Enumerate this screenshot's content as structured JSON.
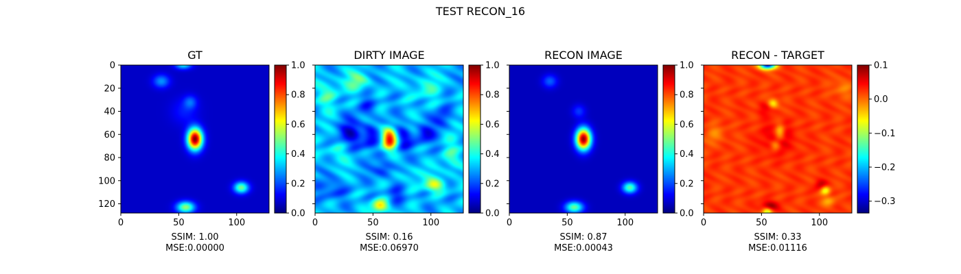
{
  "figure": {
    "title": "TEST RECON_16"
  },
  "chart_data": [
    {
      "type": "heatmap",
      "title": "GT",
      "colormap": "jet",
      "image_extent": [
        0,
        128
      ],
      "x_ticks": [
        "0",
        "50",
        "100"
      ],
      "y_ticks": [
        "0",
        "20",
        "40",
        "60",
        "80",
        "100",
        "120"
      ],
      "colorbar": {
        "range": [
          0.0,
          1.0
        ],
        "ticks": [
          "0.0",
          "0.2",
          "0.4",
          "0.6",
          "0.8",
          "1.0"
        ]
      },
      "metrics": {
        "ssim": "SSIM: 1.00",
        "mse": "MSE:0.00000"
      },
      "background_level": 0.07,
      "blobs": [
        {
          "x": 64,
          "y": 64,
          "sx": 4.5,
          "sy": 6.5,
          "value": 0.93
        },
        {
          "x": 104,
          "y": 106,
          "sx": 4.5,
          "sy": 3.5,
          "value": 0.42
        },
        {
          "x": 56,
          "y": 123,
          "sx": 5.5,
          "sy": 3.5,
          "value": 0.45
        },
        {
          "x": 54,
          "y": 0,
          "sx": 5.0,
          "sy": 2.5,
          "value": 0.28
        },
        {
          "x": 35,
          "y": 14,
          "sx": 5.0,
          "sy": 4.0,
          "value": 0.2
        },
        {
          "x": 60,
          "y": 32,
          "sx": 4.0,
          "sy": 4.0,
          "value": 0.14
        },
        {
          "x": 55,
          "y": 40,
          "sx": 8.0,
          "sy": 8.0,
          "value": 0.08
        }
      ]
    },
    {
      "type": "heatmap",
      "title": "DIRTY IMAGE",
      "colormap": "jet",
      "image_extent": [
        0,
        128
      ],
      "x_ticks": [
        "0",
        "50",
        "100"
      ],
      "y_ticks": [],
      "colorbar": {
        "range": [
          0.0,
          1.0
        ],
        "ticks": [
          "0.0",
          "0.2",
          "0.4",
          "0.6",
          "0.8",
          "1.0"
        ]
      },
      "metrics": {
        "ssim": "SSIM: 0.16",
        "mse": "MSE:0.06970"
      },
      "background_level": 0.3,
      "blobs": [
        {
          "x": 64,
          "y": 64,
          "sx": 4.5,
          "sy": 6.5,
          "value": 0.62
        },
        {
          "x": 56,
          "y": 122,
          "sx": 5.0,
          "sy": 4.0,
          "value": 0.35
        },
        {
          "x": 103,
          "y": 104,
          "sx": 6.0,
          "sy": 4.0,
          "value": 0.28
        },
        {
          "x": 37,
          "y": 14,
          "sx": 7.0,
          "sy": 6.0,
          "value": 0.18
        },
        {
          "x": 10,
          "y": 25,
          "sx": 8.0,
          "sy": 10.0,
          "value": 0.12
        },
        {
          "x": 95,
          "y": 20,
          "sx": 10.0,
          "sy": 8.0,
          "value": 0.1
        },
        {
          "x": 120,
          "y": 80,
          "sx": 6.0,
          "sy": 12.0,
          "value": 0.12
        },
        {
          "x": 20,
          "y": 75,
          "sx": 8.0,
          "sy": 7.0,
          "value": 0.1
        },
        {
          "x": 85,
          "y": 95,
          "sx": 8.0,
          "sy": 6.0,
          "value": 0.08
        },
        {
          "x": 30,
          "y": 60,
          "sx": 7.0,
          "sy": 9.0,
          "value": -0.2
        },
        {
          "x": 48,
          "y": 62,
          "sx": 5.0,
          "sy": 8.0,
          "value": -0.22
        },
        {
          "x": 76,
          "y": 64,
          "sx": 5.0,
          "sy": 8.0,
          "value": -0.2
        },
        {
          "x": 95,
          "y": 60,
          "sx": 6.0,
          "sy": 6.0,
          "value": -0.18
        },
        {
          "x": 60,
          "y": 90,
          "sx": 6.0,
          "sy": 5.0,
          "value": -0.15
        },
        {
          "x": 15,
          "y": 108,
          "sx": 8.0,
          "sy": 6.0,
          "value": -0.12
        },
        {
          "x": 110,
          "y": 45,
          "sx": 6.0,
          "sy": 6.0,
          "value": -0.12
        },
        {
          "x": 45,
          "y": 35,
          "sx": 6.0,
          "sy": 6.0,
          "value": -0.1
        },
        {
          "x": 70,
          "y": 112,
          "sx": 6.0,
          "sy": 5.0,
          "value": -0.12
        }
      ],
      "texture": {
        "amplitude": 0.08,
        "frequency": 0.22
      }
    },
    {
      "type": "heatmap",
      "title": "RECON IMAGE",
      "colormap": "jet",
      "image_extent": [
        0,
        128
      ],
      "x_ticks": [
        "0",
        "50",
        "100"
      ],
      "y_ticks": [],
      "colorbar": {
        "range": [
          0.0,
          1.0
        ],
        "ticks": [
          "0.0",
          "0.2",
          "0.4",
          "0.6",
          "0.8",
          "1.0"
        ]
      },
      "metrics": {
        "ssim": "SSIM: 0.87",
        "mse": "MSE:0.00043"
      },
      "background_level": 0.06,
      "blobs": [
        {
          "x": 64,
          "y": 64,
          "sx": 4.5,
          "sy": 6.5,
          "value": 0.92
        },
        {
          "x": 104,
          "y": 106,
          "sx": 4.5,
          "sy": 3.5,
          "value": 0.4
        },
        {
          "x": 56,
          "y": 123,
          "sx": 5.5,
          "sy": 3.5,
          "value": 0.42
        },
        {
          "x": 35,
          "y": 14,
          "sx": 4.5,
          "sy": 4.0,
          "value": 0.16
        },
        {
          "x": 60,
          "y": 40,
          "sx": 4.0,
          "sy": 4.0,
          "value": 0.12
        }
      ]
    },
    {
      "type": "heatmap",
      "title": "RECON - TARGET",
      "colormap": "jet",
      "image_extent": [
        0,
        128
      ],
      "x_ticks": [
        "0",
        "50",
        "100"
      ],
      "y_ticks": [],
      "colorbar": {
        "range": [
          -0.335,
          0.1
        ],
        "ticks": [
          "0.1",
          "0.0",
          "−0.1",
          "−0.2",
          "−0.3"
        ],
        "tick_values": [
          0.1,
          0.0,
          -0.1,
          -0.2,
          -0.3
        ]
      },
      "metrics": {
        "ssim": "SSIM: 0.33",
        "mse": "MSE:0.01116"
      },
      "background_level": 0.022,
      "blobs": [
        {
          "x": 55,
          "y": 0,
          "sx": 5.0,
          "sy": 2.5,
          "value": -0.3
        },
        {
          "x": 52,
          "y": 38,
          "sx": 4.0,
          "sy": 4.0,
          "value": 0.03
        },
        {
          "x": 60,
          "y": 33,
          "sx": 3.0,
          "sy": 3.0,
          "value": -0.08
        },
        {
          "x": 64,
          "y": 64,
          "sx": 10.0,
          "sy": 10.0,
          "value": 0.04
        },
        {
          "x": 66,
          "y": 58,
          "sx": 3.0,
          "sy": 5.0,
          "value": -0.08
        },
        {
          "x": 62,
          "y": 70,
          "sx": 3.0,
          "sy": 4.0,
          "value": -0.06
        },
        {
          "x": 102,
          "y": 104,
          "sx": 4.0,
          "sy": 3.0,
          "value": 0.06
        },
        {
          "x": 105,
          "y": 108,
          "sx": 3.0,
          "sy": 3.0,
          "value": -0.1
        },
        {
          "x": 57,
          "y": 122,
          "sx": 5.0,
          "sy": 3.0,
          "value": 0.07
        },
        {
          "x": 55,
          "y": 127,
          "sx": 3.0,
          "sy": 2.5,
          "value": -0.12
        },
        {
          "x": 108,
          "y": 118,
          "sx": 4.0,
          "sy": 3.0,
          "value": -0.05
        },
        {
          "x": 10,
          "y": 60,
          "sx": 6.0,
          "sy": 6.0,
          "value": -0.03
        },
        {
          "x": 120,
          "y": 20,
          "sx": 6.0,
          "sy": 6.0,
          "value": -0.03
        }
      ],
      "texture": {
        "amplitude": 0.012,
        "frequency": 0.3
      }
    }
  ]
}
